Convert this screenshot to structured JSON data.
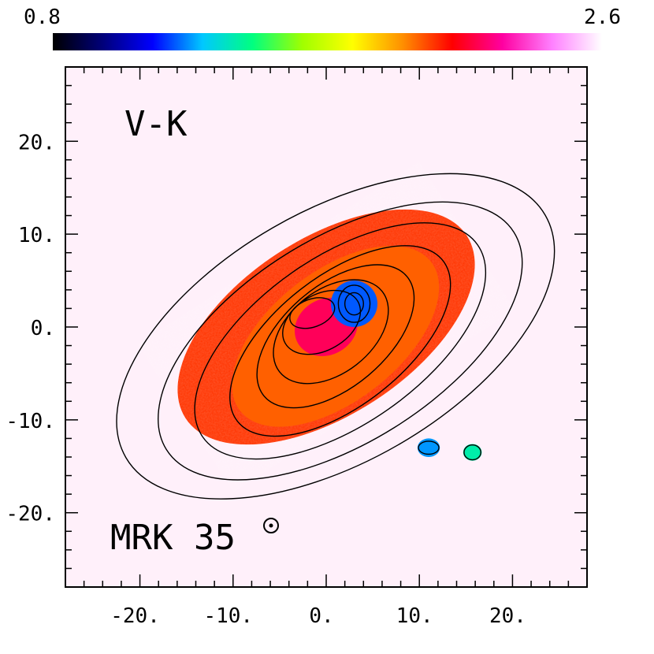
{
  "chart_data": {
    "type": "heatmap",
    "title": "V-K",
    "object_label": "MRK 35",
    "colorbar": {
      "min_label": "0.8",
      "max_label": "2.6",
      "min": 0.8,
      "max": 2.6,
      "colors": [
        "#000000",
        "#00007a",
        "#0000ff",
        "#00c8ff",
        "#00ff80",
        "#a0ff00",
        "#ffff00",
        "#ff9000",
        "#ff0000",
        "#ff00a0",
        "#ff80ff",
        "#ffffff"
      ]
    },
    "x_range": [
      -28,
      28
    ],
    "y_range": [
      -28,
      28
    ],
    "x_ticks": [
      -20,
      -10,
      0,
      10,
      20
    ],
    "y_ticks": [
      20,
      10,
      0,
      -10,
      -20
    ],
    "x_tick_labels": [
      "-20.",
      "-10.",
      "0.",
      "10.",
      "20."
    ],
    "y_tick_labels": [
      "20.",
      "10.",
      "0.",
      "-10.",
      "-20."
    ],
    "grid": false,
    "background_color": "#fff0fa",
    "color_regions": [
      {
        "name": "outer body",
        "center": [
          0,
          0
        ],
        "semi_axes": [
          18,
          9.5
        ],
        "angle_deg": -33,
        "value": 2.05
      },
      {
        "name": "inner body",
        "center": [
          1,
          -1
        ],
        "semi_axes": [
          13,
          7
        ],
        "angle_deg": -38,
        "value": 2.0
      },
      {
        "name": "core",
        "center": [
          0,
          0
        ],
        "semi_axes": [
          3.5,
          3
        ],
        "angle_deg": -30,
        "value": 2.2
      },
      {
        "name": "blue knot main",
        "center": [
          3,
          2.5
        ],
        "semi_axes": [
          2.5,
          2.5
        ],
        "angle_deg": 0,
        "value": 1.2
      },
      {
        "name": "blue knot south 1",
        "center": [
          11,
          -13
        ],
        "semi_axes": [
          1.2,
          1
        ],
        "angle_deg": 0,
        "value": 1.25
      },
      {
        "name": "blue knot south 2",
        "center": [
          15.7,
          -13.5
        ],
        "semi_axes": [
          1,
          0.9
        ],
        "angle_deg": 0,
        "value": 1.4
      }
    ],
    "contours": [
      {
        "level": 1,
        "center": [
          1,
          -1
        ],
        "semi_axes": [
          26,
          13.5
        ],
        "angle_deg": -30
      },
      {
        "level": 2,
        "center": [
          1.5,
          -1.5
        ],
        "semi_axes": [
          22,
          11
        ],
        "angle_deg": -32
      },
      {
        "level": 3,
        "center": [
          1.5,
          -1.5
        ],
        "semi_axes": [
          18,
          9
        ],
        "angle_deg": -35
      },
      {
        "level": 4,
        "center": [
          1.5,
          -1.5
        ],
        "semi_axes": [
          14,
          7
        ],
        "angle_deg": -38
      },
      {
        "level": 5,
        "center": [
          1,
          -1
        ],
        "semi_axes": [
          10,
          5.5
        ],
        "angle_deg": -40
      },
      {
        "level": 6,
        "center": [
          0.5,
          -0.5
        ],
        "semi_axes": [
          7,
          4.5
        ],
        "angle_deg": -38
      },
      {
        "level": 7,
        "center": [
          -0.5,
          0.5
        ],
        "semi_axes": [
          4.5,
          3
        ],
        "angle_deg": -30
      },
      {
        "level": 8,
        "center": [
          -1.5,
          1.5
        ],
        "semi_axes": [
          2.5,
          1.5
        ],
        "angle_deg": -20
      },
      {
        "level": 9,
        "center": [
          3,
          2.5
        ],
        "semi_axes": [
          1.7,
          2
        ],
        "angle_deg": 0
      },
      {
        "level": 10,
        "center": [
          3,
          2.5
        ],
        "semi_axes": [
          1,
          1.2
        ],
        "angle_deg": 0
      },
      {
        "level": 11,
        "center": [
          11,
          -13
        ],
        "semi_axes": [
          1.1,
          0.7
        ],
        "angle_deg": 0
      },
      {
        "level": 12,
        "center": [
          15.7,
          -13.5
        ],
        "semi_axes": [
          0.9,
          0.8
        ],
        "angle_deg": 0
      }
    ]
  }
}
